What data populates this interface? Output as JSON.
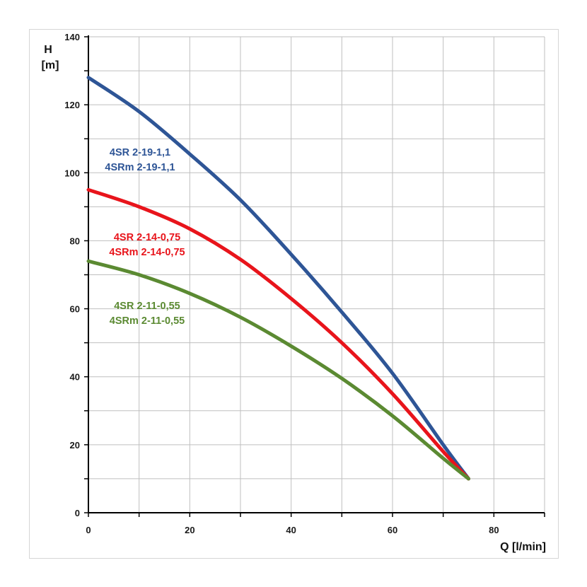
{
  "chart_data": {
    "type": "line",
    "xlabel": "Q [l/min]",
    "ylabel_line1": "H",
    "ylabel_line2": "[m]",
    "xlim": [
      0,
      90
    ],
    "ylim": [
      0,
      140
    ],
    "x_ticks": [
      0,
      20,
      40,
      60,
      80
    ],
    "y_ticks": [
      0,
      20,
      40,
      60,
      80,
      100,
      120,
      140
    ],
    "x_grid_step": 10,
    "y_grid_step": 10,
    "grid": true,
    "series": [
      {
        "name": "4SR 2-19-1,1",
        "label_lines": [
          "4SR 2-19-1,1",
          "4SRm 2-19-1,1"
        ],
        "color": "#2e5596",
        "x": [
          0,
          10,
          20,
          30,
          40,
          50,
          60,
          70,
          75
        ],
        "y": [
          128,
          118,
          105.5,
          92,
          76,
          59,
          41,
          20,
          10
        ]
      },
      {
        "name": "4SR 2-14-0,75",
        "label_lines": [
          "4SR 2-14-0,75",
          "4SRm 2-14-0,75"
        ],
        "color": "#e8141b",
        "x": [
          0,
          10,
          20,
          30,
          40,
          50,
          60,
          70,
          75
        ],
        "y": [
          95,
          90,
          83.5,
          74.5,
          63,
          50,
          35,
          18,
          10
        ]
      },
      {
        "name": "4SR 2-11-0,55",
        "label_lines": [
          "4SR 2-11-0,55",
          "4SRm 2-11-0,55"
        ],
        "color": "#5b8a32",
        "x": [
          0,
          10,
          20,
          30,
          40,
          50,
          60,
          70,
          75
        ],
        "y": [
          74,
          70,
          64.5,
          57.5,
          49,
          39.5,
          28.5,
          16,
          10
        ]
      }
    ]
  }
}
